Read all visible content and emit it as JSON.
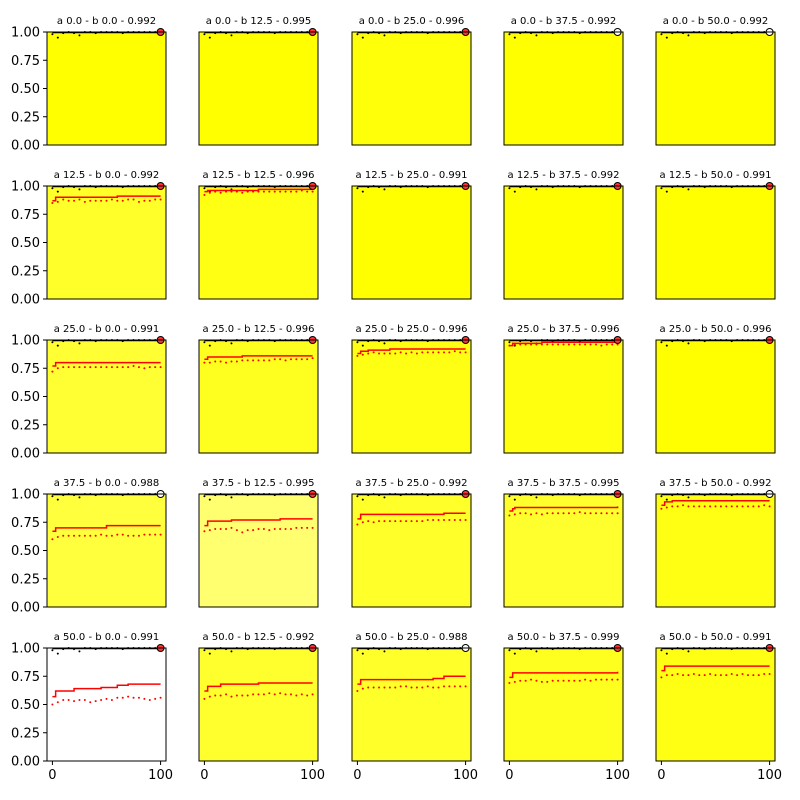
{
  "chart_data": {
    "type": "grid of line plots",
    "rows": 5,
    "cols": 5,
    "xlim": [
      -5,
      105
    ],
    "ylim": [
      0,
      1
    ],
    "x_ticks": [
      0,
      100
    ],
    "y_ticks": [
      0.0,
      0.25,
      0.5,
      0.75,
      1.0
    ],
    "y_tick_labels": [
      "0.00",
      "0.25",
      "0.50",
      "0.75",
      "1.00"
    ],
    "x_tick_labels": [
      "0",
      "100"
    ],
    "colors": {
      "line": "#ff0000",
      "top_points": "#000000",
      "endpoint_marker": "#ff3333"
    },
    "panels": [
      {
        "title": "a 0.0 - b 0.0 - 0.992",
        "bg": "#ffff00",
        "steps": [],
        "dots": [],
        "end_marker": "red"
      },
      {
        "title": "a 0.0 - b 12.5 - 0.995",
        "bg": "#ffff00",
        "steps": [],
        "dots": [],
        "end_marker": "red"
      },
      {
        "title": "a 0.0 - b 25.0 - 0.996",
        "bg": "#ffff0a",
        "steps": [],
        "dots": [],
        "end_marker": "red"
      },
      {
        "title": "a 0.0 - b 37.5 - 0.992",
        "bg": "#ffff00",
        "steps": [],
        "dots": [],
        "end_marker": "white"
      },
      {
        "title": "a 0.0 - b 50.0 - 0.992",
        "bg": "#ffff00",
        "steps": [],
        "dots": [],
        "end_marker": "white"
      },
      {
        "title": "a 12.5 - b 0.0 - 0.992",
        "bg": "#ffff29",
        "steps": [
          [
            0,
            0.87
          ],
          [
            3,
            0.9
          ],
          [
            60,
            0.91
          ],
          [
            100,
            0.91
          ]
        ],
        "dots": [
          0.85,
          0.86,
          0.88,
          0.87,
          0.87,
          0.88,
          0.86,
          0.87,
          0.87,
          0.87,
          0.87,
          0.88,
          0.87,
          0.87,
          0.88,
          0.88,
          0.86,
          0.87,
          0.87,
          0.88,
          0.88
        ],
        "end_marker": "red"
      },
      {
        "title": "a 12.5 - b 12.5 - 0.996",
        "bg": "#ffff14",
        "steps": [
          [
            0,
            0.95
          ],
          [
            3,
            0.96
          ],
          [
            50,
            0.97
          ],
          [
            100,
            0.97
          ]
        ],
        "dots": [
          0.92,
          0.94,
          0.95,
          0.94,
          0.95,
          0.95,
          0.95,
          0.94,
          0.95,
          0.95,
          0.95,
          0.95,
          0.95,
          0.95,
          0.95,
          0.95,
          0.95,
          0.95,
          0.96,
          0.95,
          0.95
        ],
        "end_marker": "red"
      },
      {
        "title": "a 12.5 - b 25.0 - 0.991",
        "bg": "#ffff00",
        "steps": [],
        "dots": [],
        "end_marker": "red"
      },
      {
        "title": "a 12.5 - b 37.5 - 0.992",
        "bg": "#ffff00",
        "steps": [],
        "dots": [],
        "end_marker": "red"
      },
      {
        "title": "a 12.5 - b 50.0 - 0.991",
        "bg": "#ffff00",
        "steps": [],
        "dots": [],
        "end_marker": "red"
      },
      {
        "title": "a 25.0 - b 0.0 - 0.991",
        "bg": "#ffff33",
        "steps": [
          [
            0,
            0.77
          ],
          [
            3,
            0.8
          ],
          [
            100,
            0.8
          ]
        ],
        "dots": [
          0.72,
          0.75,
          0.76,
          0.76,
          0.76,
          0.76,
          0.76,
          0.76,
          0.76,
          0.76,
          0.76,
          0.76,
          0.76,
          0.76,
          0.76,
          0.77,
          0.76,
          0.75,
          0.76,
          0.76,
          0.76
        ],
        "end_marker": "red"
      },
      {
        "title": "a 25.0 - b 12.5 - 0.996",
        "bg": "#ffff1f",
        "steps": [
          [
            0,
            0.83
          ],
          [
            3,
            0.85
          ],
          [
            35,
            0.86
          ],
          [
            100,
            0.86
          ]
        ],
        "dots": [
          0.8,
          0.8,
          0.81,
          0.81,
          0.8,
          0.81,
          0.81,
          0.82,
          0.82,
          0.82,
          0.82,
          0.82,
          0.82,
          0.83,
          0.83,
          0.82,
          0.83,
          0.83,
          0.83,
          0.83,
          0.84
        ],
        "end_marker": "red"
      },
      {
        "title": "a 25.0 - b 25.0 - 0.996",
        "bg": "#ffff14",
        "steps": [
          [
            0,
            0.88
          ],
          [
            3,
            0.9
          ],
          [
            10,
            0.91
          ],
          [
            30,
            0.92
          ],
          [
            100,
            0.92
          ]
        ],
        "dots": [
          0.86,
          0.87,
          0.88,
          0.89,
          0.88,
          0.88,
          0.88,
          0.88,
          0.89,
          0.88,
          0.89,
          0.88,
          0.89,
          0.89,
          0.89,
          0.89,
          0.89,
          0.89,
          0.9,
          0.89,
          0.89
        ],
        "end_marker": "red"
      },
      {
        "title": "a 25.0 - b 37.5 - 0.996",
        "bg": "#ffff0f",
        "steps": [
          [
            0,
            0.95
          ],
          [
            3,
            0.97
          ],
          [
            30,
            0.98
          ],
          [
            100,
            0.98
          ]
        ],
        "dots": [
          0.95,
          0.96,
          0.96,
          0.96,
          0.96,
          0.96,
          0.96,
          0.96,
          0.96,
          0.96,
          0.96,
          0.96,
          0.96,
          0.96,
          0.96,
          0.96,
          0.96,
          0.95,
          0.96,
          0.96,
          0.96
        ],
        "end_marker": "red"
      },
      {
        "title": "a 25.0 - b 50.0 - 0.996",
        "bg": "#ffff00",
        "steps": [],
        "dots": [],
        "end_marker": "red"
      },
      {
        "title": "a 37.5 - b 0.0 - 0.988",
        "bg": "#ffff3d",
        "steps": [
          [
            0,
            0.67
          ],
          [
            3,
            0.7
          ],
          [
            50,
            0.72
          ],
          [
            100,
            0.72
          ]
        ],
        "dots": [
          0.6,
          0.62,
          0.63,
          0.63,
          0.63,
          0.63,
          0.63,
          0.63,
          0.63,
          0.64,
          0.63,
          0.63,
          0.64,
          0.64,
          0.63,
          0.63,
          0.63,
          0.64,
          0.64,
          0.64,
          0.64
        ],
        "end_marker": "white"
      },
      {
        "title": "a 37.5 - b 12.5 - 0.995",
        "bg": "#ffff70",
        "steps": [
          [
            0,
            0.72
          ],
          [
            3,
            0.76
          ],
          [
            25,
            0.77
          ],
          [
            70,
            0.78
          ],
          [
            100,
            0.78
          ]
        ],
        "dots": [
          0.67,
          0.68,
          0.69,
          0.69,
          0.69,
          0.7,
          0.68,
          0.66,
          0.68,
          0.68,
          0.69,
          0.69,
          0.68,
          0.69,
          0.69,
          0.69,
          0.69,
          0.7,
          0.7,
          0.7,
          0.7
        ],
        "end_marker": "red"
      },
      {
        "title": "a 37.5 - b 25.0 - 0.992",
        "bg": "#ffff29",
        "steps": [
          [
            0,
            0.78
          ],
          [
            3,
            0.82
          ],
          [
            80,
            0.83
          ],
          [
            100,
            0.83
          ]
        ],
        "dots": [
          0.73,
          0.75,
          0.76,
          0.75,
          0.76,
          0.76,
          0.76,
          0.76,
          0.76,
          0.76,
          0.76,
          0.76,
          0.76,
          0.77,
          0.77,
          0.77,
          0.77,
          0.77,
          0.77,
          0.77,
          0.77
        ],
        "end_marker": "red"
      },
      {
        "title": "a 37.5 - b 37.5 - 0.995",
        "bg": "#ffff2e",
        "steps": [
          [
            0,
            0.85
          ],
          [
            3,
            0.87
          ],
          [
            5,
            0.88
          ],
          [
            100,
            0.89
          ]
        ],
        "dots": [
          0.81,
          0.82,
          0.83,
          0.83,
          0.82,
          0.83,
          0.82,
          0.83,
          0.83,
          0.83,
          0.83,
          0.83,
          0.83,
          0.84,
          0.83,
          0.83,
          0.83,
          0.83,
          0.83,
          0.83,
          0.83
        ],
        "end_marker": "red"
      },
      {
        "title": "a 37.5 - b 50.0 - 0.992",
        "bg": "#ffff14",
        "steps": [
          [
            0,
            0.9
          ],
          [
            3,
            0.93
          ],
          [
            10,
            0.94
          ],
          [
            100,
            0.94
          ]
        ],
        "dots": [
          0.87,
          0.88,
          0.89,
          0.89,
          0.9,
          0.89,
          0.89,
          0.89,
          0.89,
          0.89,
          0.89,
          0.89,
          0.89,
          0.89,
          0.89,
          0.89,
          0.89,
          0.89,
          0.89,
          0.9,
          0.89
        ],
        "end_marker": "white"
      },
      {
        "title": "a 50.0 - b 0.0 - 0.991",
        "bg": "#ffffff",
        "steps": [
          [
            0,
            0.57
          ],
          [
            3,
            0.62
          ],
          [
            20,
            0.64
          ],
          [
            45,
            0.65
          ],
          [
            60,
            0.67
          ],
          [
            70,
            0.68
          ],
          [
            100,
            0.68
          ]
        ],
        "dots": [
          0.5,
          0.52,
          0.54,
          0.54,
          0.53,
          0.54,
          0.54,
          0.52,
          0.53,
          0.54,
          0.55,
          0.54,
          0.56,
          0.56,
          0.57,
          0.56,
          0.56,
          0.55,
          0.54,
          0.55,
          0.56
        ],
        "end_marker": "red"
      },
      {
        "title": "a 50.0 - b 12.5 - 0.992",
        "bg": "#ffff2e",
        "steps": [
          [
            0,
            0.62
          ],
          [
            3,
            0.66
          ],
          [
            15,
            0.68
          ],
          [
            50,
            0.69
          ],
          [
            100,
            0.69
          ]
        ],
        "dots": [
          0.55,
          0.57,
          0.58,
          0.58,
          0.59,
          0.57,
          0.58,
          0.58,
          0.58,
          0.59,
          0.59,
          0.59,
          0.6,
          0.59,
          0.6,
          0.59,
          0.59,
          0.58,
          0.59,
          0.58,
          0.59
        ],
        "end_marker": "red"
      },
      {
        "title": "a 50.0 - b 25.0 - 0.988",
        "bg": "#ffff29",
        "steps": [
          [
            0,
            0.68
          ],
          [
            3,
            0.72
          ],
          [
            70,
            0.73
          ],
          [
            80,
            0.75
          ],
          [
            100,
            0.75
          ]
        ],
        "dots": [
          0.62,
          0.64,
          0.65,
          0.65,
          0.65,
          0.65,
          0.65,
          0.65,
          0.66,
          0.66,
          0.65,
          0.65,
          0.65,
          0.66,
          0.65,
          0.65,
          0.66,
          0.66,
          0.66,
          0.66,
          0.66
        ],
        "end_marker": "white"
      },
      {
        "title": "a 50.0 - b 37.5 - 0.999",
        "bg": "#ffff1f",
        "steps": [
          [
            0,
            0.74
          ],
          [
            3,
            0.78
          ],
          [
            100,
            0.79
          ]
        ],
        "dots": [
          0.69,
          0.7,
          0.71,
          0.71,
          0.72,
          0.71,
          0.7,
          0.7,
          0.71,
          0.71,
          0.71,
          0.71,
          0.71,
          0.71,
          0.72,
          0.71,
          0.72,
          0.72,
          0.72,
          0.72,
          0.72
        ],
        "end_marker": "red"
      },
      {
        "title": "a 50.0 - b 50.0 - 0.991",
        "bg": "#ffff14",
        "steps": [
          [
            0,
            0.8
          ],
          [
            3,
            0.84
          ],
          [
            100,
            0.84
          ]
        ],
        "dots": [
          0.74,
          0.76,
          0.76,
          0.77,
          0.76,
          0.76,
          0.77,
          0.76,
          0.76,
          0.77,
          0.76,
          0.76,
          0.76,
          0.77,
          0.76,
          0.77,
          0.76,
          0.76,
          0.76,
          0.77,
          0.77
        ],
        "end_marker": "red"
      }
    ]
  }
}
